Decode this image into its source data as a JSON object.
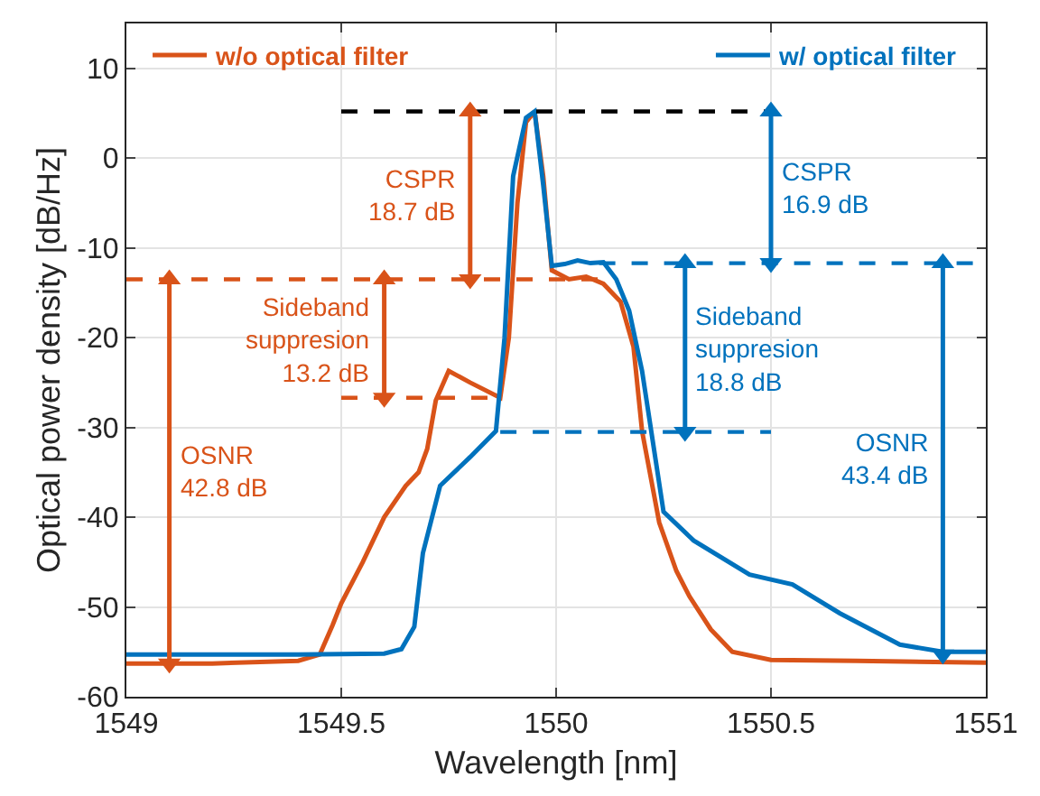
{
  "chart_data": {
    "type": "line",
    "xlabel": "Wavelength [nm]",
    "ylabel": "Optical power density [dB/Hz]",
    "xlim": [
      1549,
      1551
    ],
    "xticks": [
      1549,
      1549.5,
      1550,
      1550.5,
      1551
    ],
    "ylim": [
      -60,
      15
    ],
    "yticks": [
      -60,
      -50,
      -40,
      -30,
      -20,
      -10,
      0,
      10
    ],
    "grid": true,
    "legend": "top",
    "series": [
      {
        "name": "w/o optical filter",
        "color": "#d95319",
        "line_style": "solid",
        "x": [
          1549,
          1549.2,
          1549.4,
          1549.45,
          1549.48,
          1549.5,
          1549.55,
          1549.6,
          1549.65,
          1549.68,
          1549.7,
          1549.72,
          1549.75,
          1549.8,
          1549.87,
          1549.89,
          1549.91,
          1549.93,
          1549.95,
          1549.97,
          1549.99,
          1550.03,
          1550.07,
          1550.11,
          1550.15,
          1550.18,
          1550.2,
          1550.24,
          1550.28,
          1550.31,
          1550.36,
          1550.41,
          1550.5,
          1550.7,
          1551
        ],
        "values": [
          -56.3,
          -56.3,
          -56,
          -55.3,
          -52,
          -49.6,
          -45,
          -40,
          -36.5,
          -35,
          -32.4,
          -27,
          -23.7,
          -25,
          -26.7,
          -20,
          -5,
          4,
          5.2,
          -2,
          -12.5,
          -13.5,
          -13.2,
          -14,
          -16,
          -21,
          -30.4,
          -40.6,
          -46,
          -48.8,
          -52.5,
          -55,
          -55.9,
          -56,
          -56.2
        ]
      },
      {
        "name": "w/ optical filter",
        "color": "#0072bd",
        "line_style": "solid",
        "x": [
          1549,
          1549.4,
          1549.6,
          1549.64,
          1549.67,
          1549.69,
          1549.73,
          1549.8,
          1549.86,
          1549.88,
          1549.9,
          1549.93,
          1549.95,
          1549.97,
          1549.99,
          1550.02,
          1550.05,
          1550.08,
          1550.11,
          1550.14,
          1550.17,
          1550.2,
          1550.25,
          1550.32,
          1550.45,
          1550.55,
          1550.66,
          1550.8,
          1550.9,
          1551
        ],
        "values": [
          -55.3,
          -55.3,
          -55.2,
          -54.7,
          -52.2,
          -44,
          -36.5,
          -33.3,
          -30.4,
          -20,
          -2,
          4.5,
          5.2,
          -3,
          -12,
          -11.8,
          -11.4,
          -11.7,
          -11.6,
          -13.5,
          -17,
          -23.7,
          -39.4,
          -42.6,
          -46.4,
          -47.5,
          -50.7,
          -54.2,
          -55,
          -55
        ]
      },
      {
        "color": "#000000",
        "line_style": "dashed",
        "x": [
          1549.5,
          1550.5
        ],
        "values": [
          5.2,
          5.2
        ]
      },
      {
        "color": "#d95319",
        "line_style": "dashed",
        "x": [
          1549,
          1550.1
        ],
        "values": [
          -13.5,
          -13.5
        ]
      },
      {
        "color": "#d95319",
        "line_style": "dashed",
        "x": [
          1549.5,
          1549.87
        ],
        "values": [
          -26.7,
          -26.7
        ]
      },
      {
        "color": "#0072bd",
        "line_style": "dashed",
        "x": [
          1550.1,
          1551
        ],
        "values": [
          -11.7,
          -11.7
        ]
      },
      {
        "color": "#0072bd",
        "line_style": "dashed",
        "x": [
          1549.87,
          1550.5
        ],
        "values": [
          -30.5,
          -30.5
        ]
      },
      {
        "name": "CSPR\n18.7 dB",
        "color": "#d95319",
        "line_style": "solid",
        "marker": "triangle",
        "x": [
          1549.8,
          1549.8
        ],
        "values": [
          5.2,
          -13.5
        ]
      },
      {
        "name": "Sideband\nsuppresion\n13.2 dB",
        "color": "#d95319",
        "line_style": "solid",
        "marker": "triangle",
        "x": [
          1549.6,
          1549.6
        ],
        "values": [
          -13.5,
          -26.7
        ]
      },
      {
        "name": "OSNR\n42.8 dB",
        "color": "#d95319",
        "line_style": "solid",
        "marker": "triangle",
        "x": [
          1549.1,
          1549.1
        ],
        "values": [
          -13.5,
          -56.3
        ]
      },
      {
        "name": "CSPR\n16.9 dB",
        "color": "#0072bd",
        "line_style": "solid",
        "marker": "triangle",
        "x": [
          1550.5,
          1550.5
        ],
        "values": [
          5.2,
          -11.7
        ]
      },
      {
        "name": "Sideband\nsuppresion\n18.8 dB",
        "color": "#0072bd",
        "line_style": "solid",
        "marker": "triangle",
        "x": [
          1550.3,
          1550.3
        ],
        "values": [
          -11.7,
          -30.5
        ]
      },
      {
        "name": "OSNR\n43.4 dB",
        "color": "#0072bd",
        "line_style": "solid",
        "marker": "triangle",
        "x": [
          1550.9,
          1550.9
        ],
        "values": [
          -11.7,
          -55.3
        ]
      }
    ]
  }
}
